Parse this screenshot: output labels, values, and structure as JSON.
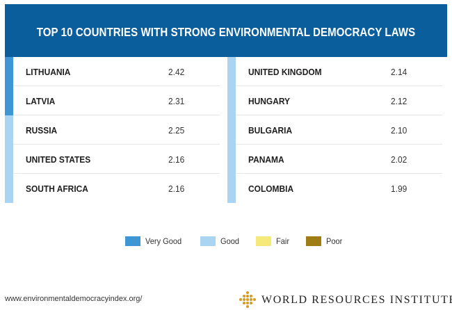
{
  "chart_data": {
    "type": "table",
    "title": "TOP 10 COUNTRIES WITH STRONG ENVIRONMENTAL DEMOCRACY LAWS",
    "columns": [
      [
        {
          "country": "LITHUANIA",
          "score": "2.42",
          "rating": "Very Good"
        },
        {
          "country": "LATVIA",
          "score": "2.31",
          "rating": "Very Good"
        },
        {
          "country": "RUSSIA",
          "score": "2.25",
          "rating": "Good"
        },
        {
          "country": "UNITED STATES",
          "score": "2.16",
          "rating": "Good"
        },
        {
          "country": "SOUTH AFRICA",
          "score": "2.16",
          "rating": "Good"
        }
      ],
      [
        {
          "country": "UNITED KINGDOM",
          "score": "2.14",
          "rating": "Good"
        },
        {
          "country": "HUNGARY",
          "score": "2.12",
          "rating": "Good"
        },
        {
          "country": "BULGARIA",
          "score": "2.10",
          "rating": "Good"
        },
        {
          "country": "PANAMA",
          "score": "2.02",
          "rating": "Good"
        },
        {
          "country": "COLOMBIA",
          "score": "1.99",
          "rating": "Good"
        }
      ]
    ],
    "legend": [
      {
        "label": "Very Good",
        "color": "#3e96d4"
      },
      {
        "label": "Good",
        "color": "#a9d4f2"
      },
      {
        "label": "Fair",
        "color": "#f5e97a"
      },
      {
        "label": "Poor",
        "color": "#a07d14"
      }
    ]
  },
  "footer": {
    "url": "www.environmentaldemocracyindex.org/",
    "organization": "WORLD RESOURCES INSTITUTE",
    "logo_icon": "wri-diamond-icon"
  },
  "colors": {
    "header_background": "#0b5e9c",
    "header_text": "#ffffff"
  }
}
